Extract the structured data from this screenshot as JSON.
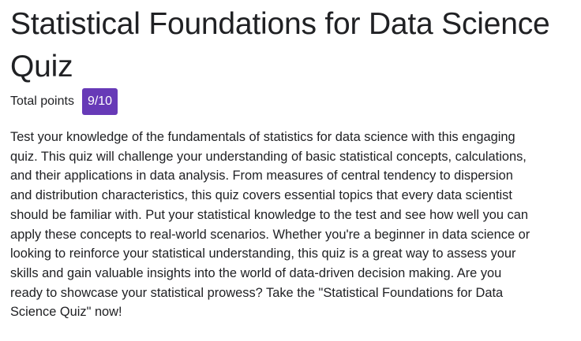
{
  "quiz": {
    "title": "Statistical Foundations for Data Science Quiz",
    "points_label": "Total points",
    "points_value": "9/10",
    "accent_color": "#673ab7",
    "description_lines": [
      "Test your knowledge of the fundamentals of statistics for data science with this engaging",
      "quiz. This quiz will challenge your understanding of basic statistical concepts, calculations,",
      "and their applications in data analysis. From measures of central tendency to dispersion",
      "and distribution characteristics, this quiz covers essential topics that every data scientist",
      "should be familiar with. Put your statistical knowledge to the test and see how well you can",
      "apply these concepts to real-world scenarios. Whether you're a beginner in data science or",
      "looking to reinforce your statistical understanding, this quiz is a great way to assess your",
      "skills and gain valuable insights into the world of data-driven decision making. Are you",
      "ready to showcase your statistical prowess? Take the \"Statistical Foundations for Data",
      "Science Quiz\" now!"
    ]
  }
}
